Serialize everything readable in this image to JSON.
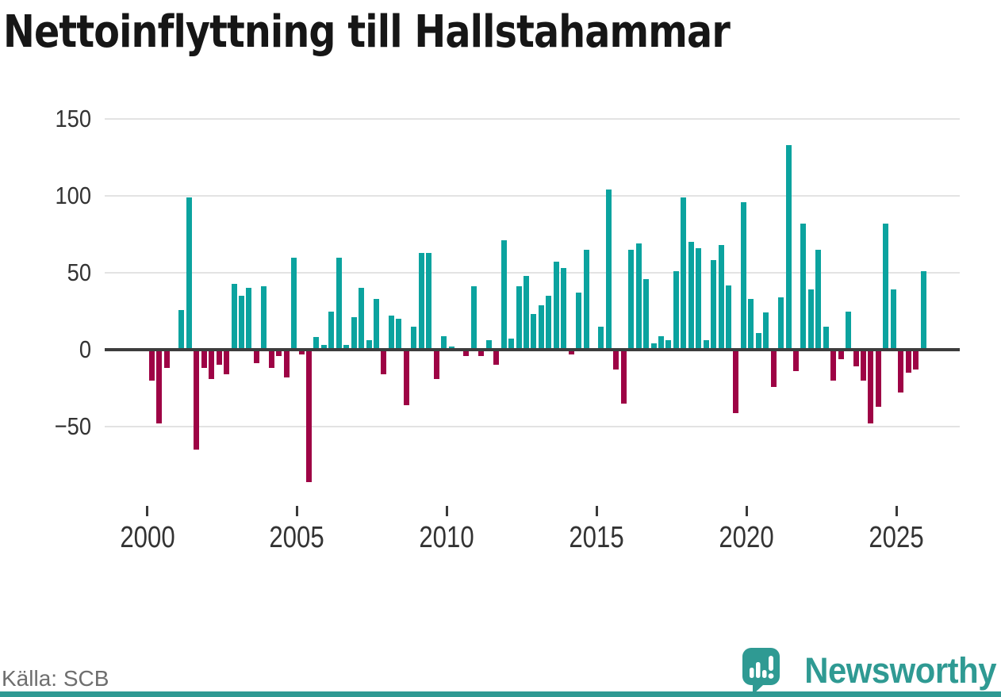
{
  "title": "Nettoinflyttning till Hallstahammar",
  "source_label": "Källa: SCB",
  "brand": {
    "wordmark": "Newsworthy"
  },
  "colors": {
    "positive": "#0ba39f",
    "negative": "#9e0345",
    "accent_teal": "#2f9a93",
    "axis_text": "#333333",
    "gridline": "#e3e3e3",
    "zero_line": "#3d3d3d",
    "title_text": "#161616",
    "source_text": "#6e6e6e"
  },
  "chart_data": {
    "type": "bar",
    "title": "Nettoinflyttning till Hallstahammar",
    "x_unit": "quarter",
    "start": "2000Q1",
    "end": "2025Q4",
    "grid": true,
    "ylim": [
      -100,
      160
    ],
    "y_ticks": [
      150,
      100,
      50,
      0,
      -50
    ],
    "y_tick_labels": [
      "150",
      "100",
      "50",
      "0",
      "−50"
    ],
    "x_tick_years": [
      2000,
      2005,
      2010,
      2015,
      2020,
      2025
    ],
    "x_tick_labels": [
      "2000",
      "2005",
      "2010",
      "2015",
      "2020",
      "2025"
    ],
    "values": [
      -20,
      -48,
      -12,
      0,
      26,
      99,
      -65,
      -12,
      -19,
      -10,
      -16,
      43,
      35,
      40,
      -9,
      41,
      -12,
      -4,
      -18,
      60,
      -3,
      -86,
      8,
      3,
      25,
      60,
      3,
      21,
      40,
      6,
      33,
      -16,
      22,
      20,
      -36,
      15,
      63,
      63,
      -19,
      9,
      2,
      0,
      -4,
      41,
      -4,
      6,
      -10,
      71,
      7,
      41,
      48,
      23,
      29,
      35,
      57,
      53,
      -3,
      37,
      65,
      0,
      15,
      104,
      -13,
      -35,
      65,
      69,
      46,
      4,
      9,
      6,
      51,
      99,
      70,
      66,
      6,
      58,
      68,
      42,
      -41,
      96,
      33,
      11,
      24,
      -24,
      34,
      133,
      -14,
      82,
      39,
      65,
      15,
      -20,
      -6,
      25,
      -11,
      -20,
      -48,
      -37,
      82,
      39,
      -28,
      -15,
      -13,
      51
    ]
  }
}
